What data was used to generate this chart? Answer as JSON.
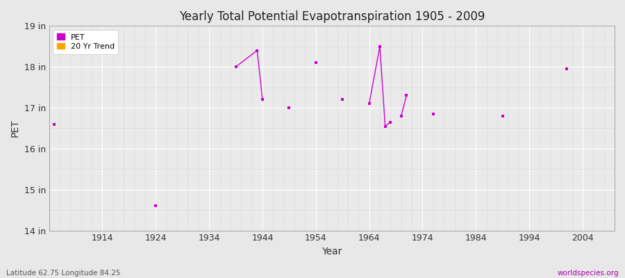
{
  "title": "Yearly Total Potential Evapotranspiration 1905 - 2009",
  "xlabel": "Year",
  "ylabel": "PET",
  "background_color": "#e8e8e8",
  "plot_bg_color": "#eaeaea",
  "pet_color": "#cc00cc",
  "trend_color": "#FFA500",
  "ylim": [
    14,
    19
  ],
  "xlim": [
    1904,
    2010
  ],
  "yticks": [
    14,
    15,
    16,
    17,
    18,
    19
  ],
  "ytick_labels": [
    "14 in",
    "15 in",
    "16 in",
    "17 in",
    "18 in",
    "19 in"
  ],
  "xticks": [
    1914,
    1924,
    1934,
    1944,
    1954,
    1964,
    1974,
    1984,
    1994,
    2004
  ],
  "isolated_years": [
    1905,
    1924,
    1949,
    1954,
    1959,
    1976,
    1989,
    2001
  ],
  "isolated_values": [
    16.6,
    14.6,
    17.0,
    18.1,
    17.2,
    16.85,
    16.8,
    17.95
  ],
  "line_segments": [
    {
      "years": [
        1939,
        1943,
        1944
      ],
      "values": [
        18.0,
        18.4,
        17.2
      ]
    },
    {
      "years": [
        1964,
        1966,
        1967,
        1968
      ],
      "values": [
        17.1,
        18.5,
        16.55,
        16.65
      ]
    },
    {
      "years": [
        1970,
        1971
      ],
      "values": [
        16.8,
        17.3
      ]
    }
  ],
  "watermark": "worldspecies.org",
  "footer": "Latitude 62.75 Longitude 84.25",
  "grid_major_color": "#ffffff",
  "grid_minor_color": "#d5d5d5"
}
